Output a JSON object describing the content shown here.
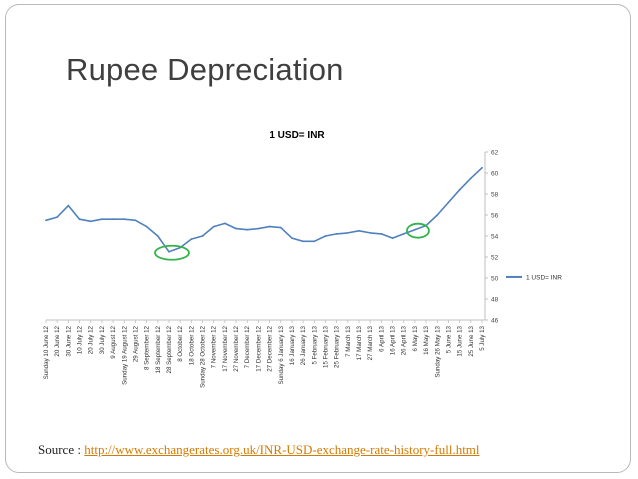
{
  "slide": {
    "title": "Rupee Depreciation",
    "source_label": "Source : ",
    "source_link": "http://www.exchangerates.org.uk/INR-USD-exchange-rate-history-full.html",
    "colors": {
      "title": "#3f3f3f",
      "link": "#d47a00",
      "line": "#4f81bd",
      "highlight": "#33b24a",
      "border": "#b9b9b9"
    }
  },
  "chart_data": {
    "type": "line",
    "title": "1 USD=  INR",
    "xlabel": "",
    "ylabel": "",
    "ylim": [
      46,
      62
    ],
    "yticks": [
      46,
      48,
      50,
      52,
      54,
      56,
      58,
      60,
      62
    ],
    "grid": false,
    "legend_position": "right",
    "series": [
      {
        "name": "1 USD=  INR",
        "x": [
          "Sunday 10 June 12",
          "20 June 12",
          "30 June 12",
          "10 July 12",
          "20 July 12",
          "30 July 12",
          "9 August 12",
          "Sunday 19 August 12",
          "29 August 12",
          "8 September 12",
          "18 September 12",
          "28 September 12",
          "8 October 12",
          "18 October 12",
          "Sunday 28 October 12",
          "7 November 12",
          "17 November 12",
          "27 November 12",
          "7 December 12",
          "17 December 12",
          "27 December 12",
          "Sunday 6 January 13",
          "16 January 13",
          "26 January 13",
          "5 February 13",
          "15 February 13",
          "25 February 13",
          "7 March 13",
          "17 March 13",
          "27 March 13",
          "6 April 13",
          "16 April 13",
          "26 April 13",
          "6 May 13",
          "16 May 13",
          "Sunday 26 May 13",
          "5 June 13",
          "15 June 13",
          "25 June 13",
          "5 July 13"
        ],
        "values": [
          55.5,
          55.8,
          56.9,
          55.6,
          55.4,
          55.6,
          55.6,
          55.6,
          55.5,
          54.9,
          54.0,
          52.5,
          52.9,
          53.7,
          54.0,
          54.9,
          55.2,
          54.7,
          54.6,
          54.7,
          54.9,
          54.8,
          53.8,
          53.5,
          53.5,
          54.0,
          54.2,
          54.3,
          54.5,
          54.3,
          54.2,
          53.8,
          54.2,
          54.6,
          55.0,
          56.0,
          57.2,
          58.4,
          59.5,
          60.5
        ]
      }
    ],
    "annotations": [
      {
        "shape": "ellipse",
        "color": "green",
        "near_x": "28 September 12"
      },
      {
        "shape": "ellipse",
        "color": "green",
        "near_x": "6 May 13"
      }
    ]
  }
}
